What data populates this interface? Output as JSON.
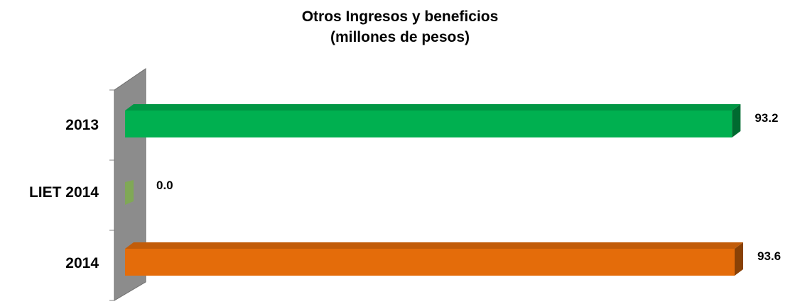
{
  "chart_data": {
    "type": "bar",
    "orientation": "horizontal",
    "three_d": true,
    "title": "Otros Ingresos y beneficios",
    "subtitle": "(millones de pesos)",
    "categories": [
      "2013",
      "LIET 2014",
      "2014"
    ],
    "values": [
      93.2,
      0.0,
      93.6
    ],
    "value_labels": [
      "93.2",
      "0.0",
      "93.6"
    ],
    "bar_colors": [
      "#00b050",
      "#92d050",
      "#e46c0a"
    ],
    "xlim": [
      0,
      93.6
    ],
    "grid": false,
    "legend": "none"
  }
}
